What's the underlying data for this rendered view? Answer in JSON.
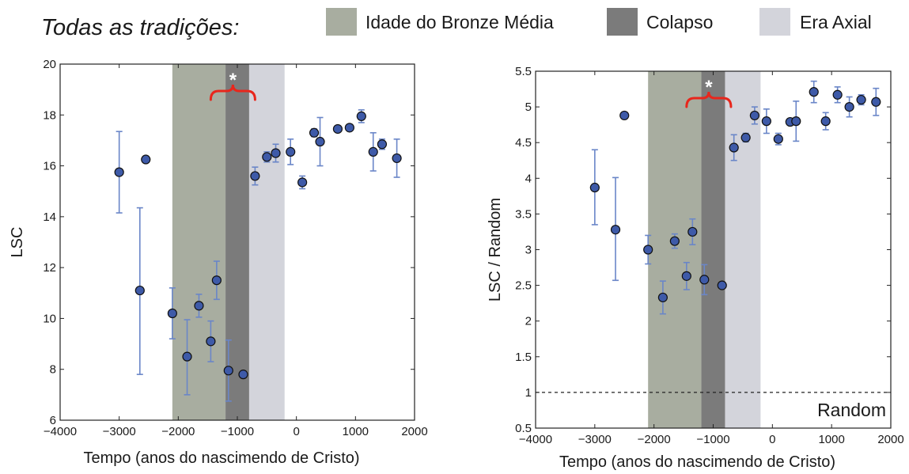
{
  "header": {
    "title": "Todas as tradições:",
    "legend": [
      {
        "label": "Idade do Bronze Média",
        "color": "#a8ada0"
      },
      {
        "label": "Colapso",
        "color": "#7b7b7b"
      },
      {
        "label": "Era Axial",
        "color": "#d3d4db"
      }
    ]
  },
  "colors": {
    "marker_fill": "#3e5aa8",
    "marker_edge": "#111111",
    "errorbar": "#6a86c8",
    "brace": "#e8261c",
    "asterisk": "#ffffff"
  },
  "chart_data": [
    {
      "type": "scatter",
      "title": "",
      "xlabel": "Tempo (anos do nascimendo de Cristo)",
      "ylabel": "LSC",
      "xlim": [
        -4000,
        2000
      ],
      "ylim": [
        6,
        20
      ],
      "xticks": [
        -4000,
        -3000,
        -2000,
        -1000,
        0,
        1000,
        2000
      ],
      "yticks": [
        6,
        8,
        10,
        12,
        14,
        16,
        18,
        20
      ],
      "xtick_labels": [
        "−4000",
        "−3000",
        "−2000",
        "−1000",
        "0",
        "1000",
        "2000"
      ],
      "ytick_labels": [
        "6",
        "8",
        "10",
        "12",
        "14",
        "16",
        "18",
        "20"
      ],
      "bands": [
        {
          "label": "Idade do Bronze Média",
          "from": -2100,
          "to": -1200
        },
        {
          "label": "Colapso",
          "from": -1200,
          "to": -800
        },
        {
          "label": "Era Axial",
          "from": -800,
          "to": -200
        }
      ],
      "annotation": {
        "text": "*",
        "brace_from": -1450,
        "brace_to": -700
      },
      "points": [
        {
          "x": -3000,
          "y": 15.75,
          "lo": 14.15,
          "hi": 17.35
        },
        {
          "x": -2650,
          "y": 11.1,
          "lo": 7.8,
          "hi": 14.35
        },
        {
          "x": -2550,
          "y": 16.25,
          "lo": 16.25,
          "hi": 16.25
        },
        {
          "x": -2100,
          "y": 10.2,
          "lo": 9.2,
          "hi": 11.2
        },
        {
          "x": -1850,
          "y": 8.5,
          "lo": 7.0,
          "hi": 9.95
        },
        {
          "x": -1650,
          "y": 10.5,
          "lo": 10.05,
          "hi": 10.95
        },
        {
          "x": -1450,
          "y": 9.1,
          "lo": 8.3,
          "hi": 9.9
        },
        {
          "x": -1350,
          "y": 11.5,
          "lo": 10.75,
          "hi": 12.25
        },
        {
          "x": -1150,
          "y": 7.95,
          "lo": 6.75,
          "hi": 9.15
        },
        {
          "x": -900,
          "y": 7.8,
          "lo": 7.8,
          "hi": 7.8
        },
        {
          "x": -700,
          "y": 15.6,
          "lo": 15.25,
          "hi": 15.95
        },
        {
          "x": -500,
          "y": 16.35,
          "lo": 16.15,
          "hi": 16.55
        },
        {
          "x": -350,
          "y": 16.5,
          "lo": 16.15,
          "hi": 16.85
        },
        {
          "x": -100,
          "y": 16.55,
          "lo": 16.05,
          "hi": 17.05
        },
        {
          "x": 100,
          "y": 15.35,
          "lo": 15.1,
          "hi": 15.6
        },
        {
          "x": 300,
          "y": 17.3,
          "lo": 17.15,
          "hi": 17.45
        },
        {
          "x": 400,
          "y": 16.95,
          "lo": 16.0,
          "hi": 17.9
        },
        {
          "x": 700,
          "y": 17.45,
          "lo": 17.45,
          "hi": 17.45
        },
        {
          "x": 900,
          "y": 17.5,
          "lo": 17.5,
          "hi": 17.5
        },
        {
          "x": 1100,
          "y": 17.95,
          "lo": 17.7,
          "hi": 18.2
        },
        {
          "x": 1300,
          "y": 16.55,
          "lo": 15.8,
          "hi": 17.3
        },
        {
          "x": 1450,
          "y": 16.85,
          "lo": 16.65,
          "hi": 17.05
        },
        {
          "x": 1700,
          "y": 16.3,
          "lo": 15.55,
          "hi": 17.05
        }
      ]
    },
    {
      "type": "scatter",
      "title": "",
      "xlabel": "Tempo (anos do nascimendo de Cristo)",
      "ylabel": "LSC / Random",
      "xlim": [
        -4000,
        2000
      ],
      "ylim": [
        0.5,
        5.5
      ],
      "xticks": [
        -4000,
        -3000,
        -2000,
        -1000,
        0,
        1000,
        2000
      ],
      "yticks": [
        0.5,
        1,
        1.5,
        2,
        2.5,
        3,
        3.5,
        4,
        4.5,
        5,
        5.5
      ],
      "xtick_labels": [
        "−4000",
        "−3000",
        "−2000",
        "−1000",
        "0",
        "1000",
        "2000"
      ],
      "ytick_labels": [
        "0.5",
        "1",
        "1.5",
        "2",
        "2.5",
        "3",
        "3.5",
        "4",
        "4.5",
        "5",
        "5.5"
      ],
      "bands": [
        {
          "label": "Idade do Bronze Média",
          "from": -2100,
          "to": -1200
        },
        {
          "label": "Colapso",
          "from": -1200,
          "to": -800
        },
        {
          "label": "Era Axial",
          "from": -800,
          "to": -200
        }
      ],
      "annotation": {
        "text": "*",
        "brace_from": -1450,
        "brace_to": -700
      },
      "reference_line": {
        "y": 1,
        "label": "Random",
        "style": "dashed"
      },
      "points": [
        {
          "x": -3000,
          "y": 3.87,
          "lo": 3.35,
          "hi": 4.4
        },
        {
          "x": -2650,
          "y": 3.28,
          "lo": 2.57,
          "hi": 4.01
        },
        {
          "x": -2500,
          "y": 4.88,
          "lo": 4.88,
          "hi": 4.88
        },
        {
          "x": -2100,
          "y": 3.0,
          "lo": 2.8,
          "hi": 3.2
        },
        {
          "x": -1850,
          "y": 2.33,
          "lo": 2.1,
          "hi": 2.56
        },
        {
          "x": -1650,
          "y": 3.12,
          "lo": 3.02,
          "hi": 3.22
        },
        {
          "x": -1450,
          "y": 2.63,
          "lo": 2.44,
          "hi": 2.82
        },
        {
          "x": -1350,
          "y": 3.25,
          "lo": 3.07,
          "hi": 3.43
        },
        {
          "x": -1150,
          "y": 2.58,
          "lo": 2.37,
          "hi": 2.79
        },
        {
          "x": -850,
          "y": 2.5,
          "lo": 2.5,
          "hi": 2.5
        },
        {
          "x": -650,
          "y": 4.43,
          "lo": 4.25,
          "hi": 4.61
        },
        {
          "x": -450,
          "y": 4.57,
          "lo": 4.51,
          "hi": 4.63
        },
        {
          "x": -300,
          "y": 4.88,
          "lo": 4.76,
          "hi": 5.0
        },
        {
          "x": -100,
          "y": 4.8,
          "lo": 4.63,
          "hi": 4.97
        },
        {
          "x": 100,
          "y": 4.55,
          "lo": 4.47,
          "hi": 4.63
        },
        {
          "x": 300,
          "y": 4.79,
          "lo": 4.79,
          "hi": 4.79
        },
        {
          "x": 400,
          "y": 4.8,
          "lo": 4.52,
          "hi": 5.08
        },
        {
          "x": 700,
          "y": 5.21,
          "lo": 5.06,
          "hi": 5.36
        },
        {
          "x": 900,
          "y": 4.8,
          "lo": 4.68,
          "hi": 4.92
        },
        {
          "x": 1100,
          "y": 5.17,
          "lo": 5.06,
          "hi": 5.28
        },
        {
          "x": 1300,
          "y": 5.0,
          "lo": 4.86,
          "hi": 5.14
        },
        {
          "x": 1500,
          "y": 5.1,
          "lo": 5.03,
          "hi": 5.17
        },
        {
          "x": 1750,
          "y": 5.07,
          "lo": 4.88,
          "hi": 5.26
        }
      ]
    }
  ]
}
